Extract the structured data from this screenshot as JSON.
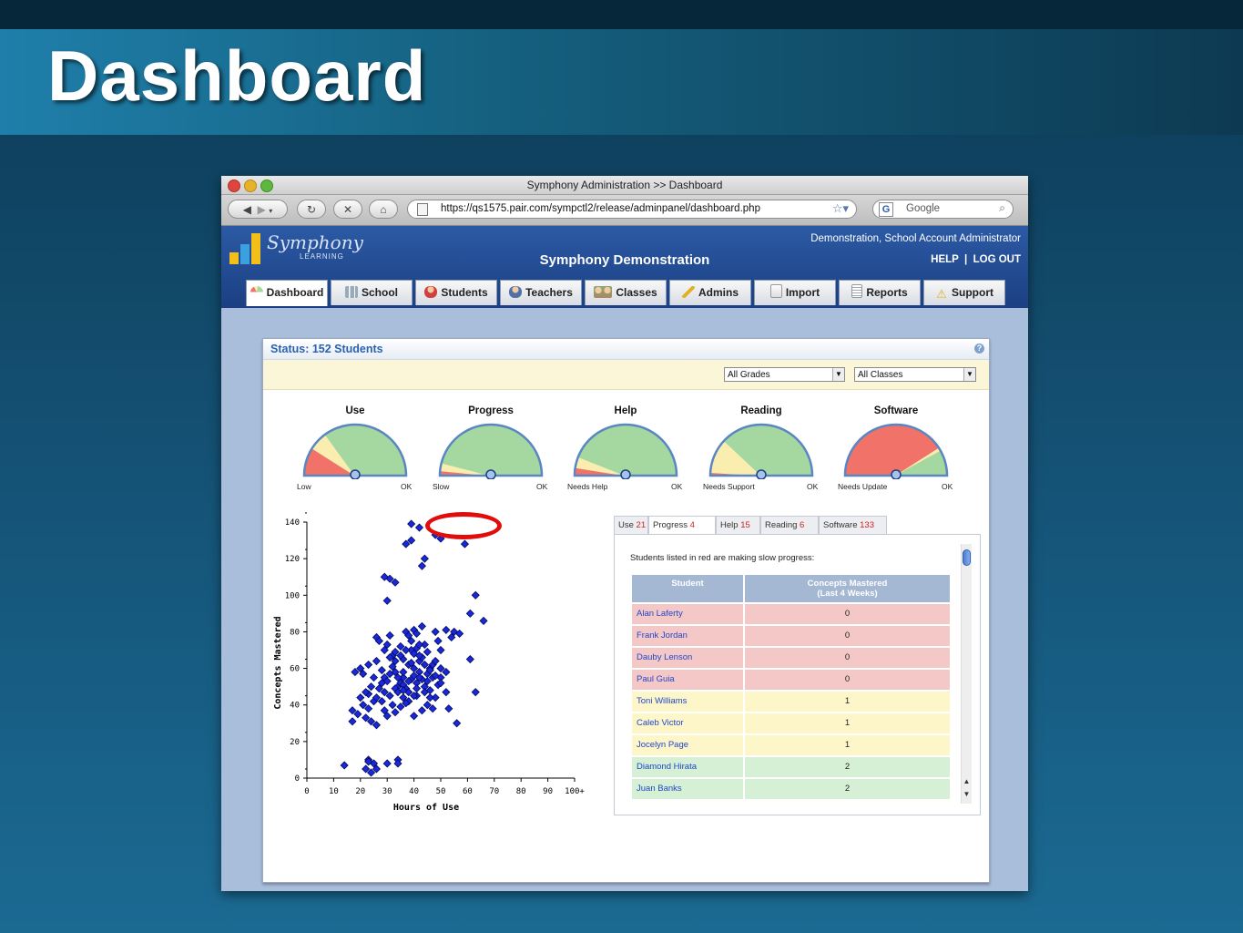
{
  "slide": {
    "title": "Dashboard"
  },
  "browser": {
    "window_title": "Symphony Administration >> Dashboard",
    "url": "https://qs1575.pair.com/sympctl2/release/adminpanel/dashboard.php",
    "search_placeholder": "Google",
    "search_engine_letter": "G"
  },
  "app": {
    "logo_text": "Symphony",
    "logo_sub": "LEARNING",
    "title": "Symphony Demonstration",
    "user": "Demonstration, School Account Administrator",
    "help": "HELP",
    "separator": "|",
    "logout": "LOG OUT",
    "tabs": [
      {
        "label": "Dashboard",
        "icon": "gauge-icon",
        "active": true
      },
      {
        "label": "School",
        "icon": "chart-icon",
        "active": false
      },
      {
        "label": "Students",
        "icon": "student-icon",
        "active": false
      },
      {
        "label": "Teachers",
        "icon": "teacher-icon",
        "active": false
      },
      {
        "label": "Classes",
        "icon": "classes-icon",
        "active": false
      },
      {
        "label": "Admins",
        "icon": "key-icon",
        "active": false
      },
      {
        "label": "Import",
        "icon": "import-icon",
        "active": false
      },
      {
        "label": "Reports",
        "icon": "report-icon",
        "active": false
      },
      {
        "label": "Support",
        "icon": "warning-icon",
        "active": false
      }
    ]
  },
  "status": {
    "title": "Status: 152 Students",
    "grade_filter": "All Grades",
    "class_filter": "All Classes",
    "gauges": [
      {
        "title": "Use",
        "low_label": "Low",
        "high_label": "OK",
        "red": 0.18,
        "yellow": 0.12,
        "green": 0.7
      },
      {
        "title": "Progress",
        "low_label": "Slow",
        "high_label": "OK",
        "red": 0.03,
        "yellow": 0.05,
        "green": 0.92
      },
      {
        "title": "Help",
        "low_label": "Needs Help",
        "high_label": "OK",
        "red": 0.05,
        "yellow": 0.07,
        "green": 0.88
      },
      {
        "title": "Reading",
        "low_label": "Needs Support",
        "high_label": "OK",
        "red": 0.02,
        "yellow": 0.22,
        "green": 0.76
      },
      {
        "title": "Software",
        "low_label": "Needs Update",
        "high_label": "OK",
        "red": 0.82,
        "yellow": 0.02,
        "green": 0.16
      }
    ]
  },
  "chart_data": {
    "type": "scatter",
    "xlabel": "Hours of Use",
    "ylabel": "Concepts Mastered",
    "xlim": [
      0,
      100
    ],
    "ylim": [
      0,
      140
    ],
    "x_ticks": [
      "0",
      "10",
      "20",
      "30",
      "40",
      "50",
      "60",
      "70",
      "80",
      "90",
      "100+"
    ],
    "y_ticks": [
      "0",
      "20",
      "40",
      "60",
      "80",
      "100",
      "120",
      "140"
    ],
    "points": [
      [
        14,
        7
      ],
      [
        22,
        5
      ],
      [
        23,
        10
      ],
      [
        25,
        8
      ],
      [
        24,
        3
      ],
      [
        26,
        5
      ],
      [
        30,
        8
      ],
      [
        34,
        10
      ],
      [
        34,
        8
      ],
      [
        23,
        9
      ],
      [
        17,
        37
      ],
      [
        17,
        31
      ],
      [
        19,
        35
      ],
      [
        21,
        40
      ],
      [
        22,
        33
      ],
      [
        23,
        38
      ],
      [
        24,
        31
      ],
      [
        25,
        42
      ],
      [
        26,
        44
      ],
      [
        23,
        46
      ],
      [
        18,
        58
      ],
      [
        20,
        60
      ],
      [
        21,
        57
      ],
      [
        23,
        62
      ],
      [
        25,
        55
      ],
      [
        26,
        64
      ],
      [
        28,
        59
      ],
      [
        29,
        55
      ],
      [
        30,
        53
      ],
      [
        31,
        57
      ],
      [
        32,
        61
      ],
      [
        33,
        58
      ],
      [
        34,
        50
      ],
      [
        35,
        52
      ],
      [
        36,
        55
      ],
      [
        37,
        49
      ],
      [
        38,
        47
      ],
      [
        39,
        54
      ],
      [
        40,
        56
      ],
      [
        41,
        52
      ],
      [
        42,
        58
      ],
      [
        43,
        54
      ],
      [
        44,
        50
      ],
      [
        45,
        53
      ],
      [
        46,
        48
      ],
      [
        47,
        55
      ],
      [
        48,
        44
      ],
      [
        49,
        51
      ],
      [
        50,
        60
      ],
      [
        52,
        47
      ],
      [
        26,
        77
      ],
      [
        27,
        75
      ],
      [
        29,
        70
      ],
      [
        30,
        73
      ],
      [
        32,
        67
      ],
      [
        31,
        78
      ],
      [
        33,
        69
      ],
      [
        35,
        72
      ],
      [
        36,
        65
      ],
      [
        37,
        80
      ],
      [
        38,
        78
      ],
      [
        39,
        70
      ],
      [
        40,
        68
      ],
      [
        41,
        71
      ],
      [
        42,
        64
      ],
      [
        43,
        66
      ],
      [
        44,
        73
      ],
      [
        45,
        69
      ],
      [
        46,
        60
      ],
      [
        47,
        62
      ],
      [
        48,
        80
      ],
      [
        49,
        75
      ],
      [
        50,
        70
      ],
      [
        52,
        81
      ],
      [
        54,
        77
      ],
      [
        55,
        80
      ],
      [
        57,
        79
      ],
      [
        61,
        65
      ],
      [
        63,
        47
      ],
      [
        66,
        86
      ],
      [
        29,
        110
      ],
      [
        31,
        109
      ],
      [
        30,
        97
      ],
      [
        33,
        107
      ],
      [
        37,
        128
      ],
      [
        39,
        130
      ],
      [
        39,
        139
      ],
      [
        42,
        137
      ],
      [
        43,
        116
      ],
      [
        44,
        120
      ],
      [
        48,
        133
      ],
      [
        50,
        131
      ],
      [
        59,
        128
      ],
      [
        63,
        100
      ],
      [
        61,
        90
      ],
      [
        26,
        29
      ],
      [
        33,
        36
      ],
      [
        35,
        39
      ],
      [
        38,
        42
      ],
      [
        40,
        34
      ],
      [
        41,
        45
      ],
      [
        43,
        37
      ],
      [
        45,
        40
      ],
      [
        47,
        38
      ],
      [
        28,
        42
      ],
      [
        29,
        47
      ],
      [
        31,
        45
      ],
      [
        33,
        49
      ],
      [
        36,
        44
      ],
      [
        37,
        41
      ],
      [
        38,
        62
      ],
      [
        40,
        60
      ],
      [
        42,
        67
      ],
      [
        45,
        57
      ],
      [
        46,
        59
      ],
      [
        48,
        64
      ],
      [
        50,
        55
      ],
      [
        53,
        38
      ],
      [
        56,
        30
      ],
      [
        34,
        55
      ],
      [
        36,
        58
      ],
      [
        39,
        63
      ],
      [
        41,
        49
      ],
      [
        44,
        47
      ],
      [
        40,
        81
      ],
      [
        41,
        79
      ],
      [
        43,
        83
      ],
      [
        42,
        73
      ],
      [
        39,
        75
      ],
      [
        37,
        70
      ],
      [
        35,
        67
      ],
      [
        33,
        64
      ],
      [
        31,
        66
      ],
      [
        28,
        52
      ],
      [
        27,
        49
      ],
      [
        24,
        50
      ],
      [
        22,
        47
      ],
      [
        20,
        44
      ],
      [
        29,
        37
      ],
      [
        32,
        40
      ],
      [
        30,
        34
      ],
      [
        34,
        47
      ],
      [
        36,
        51
      ],
      [
        46,
        44
      ],
      [
        48,
        56
      ],
      [
        50,
        52
      ],
      [
        52,
        58
      ],
      [
        44,
        62
      ],
      [
        42,
        55
      ],
      [
        40,
        45
      ],
      [
        38,
        53
      ],
      [
        36,
        48
      ]
    ]
  },
  "progress_table": {
    "tabs": [
      {
        "label": "Use",
        "count": "21",
        "active": false
      },
      {
        "label": "Progress",
        "count": "4",
        "active": true
      },
      {
        "label": "Help",
        "count": "15",
        "active": false
      },
      {
        "label": "Reading",
        "count": "6",
        "active": false
      },
      {
        "label": "Software",
        "count": "133",
        "active": false
      }
    ],
    "note": "Students listed in red are making slow progress:",
    "col_student": "Student",
    "col_concepts_1": "Concepts Mastered",
    "col_concepts_2": "(Last 4 Weeks)",
    "rows": [
      {
        "student": "Alan Laferty",
        "concepts": "0",
        "status": "red"
      },
      {
        "student": "Frank Jordan",
        "concepts": "0",
        "status": "red"
      },
      {
        "student": "Dauby Lenson",
        "concepts": "0",
        "status": "red"
      },
      {
        "student": "Paul Guia",
        "concepts": "0",
        "status": "red"
      },
      {
        "student": "Toni Williams",
        "concepts": "1",
        "status": "yellow"
      },
      {
        "student": "Caleb Victor",
        "concepts": "1",
        "status": "yellow"
      },
      {
        "student": "Jocelyn Page",
        "concepts": "1",
        "status": "yellow"
      },
      {
        "student": "Diamond Hirata",
        "concepts": "2",
        "status": "green"
      },
      {
        "student": "Juan Banks",
        "concepts": "2",
        "status": "green"
      }
    ]
  },
  "colors": {
    "red": "#f07268",
    "yellow": "#f9eeb0",
    "green": "#a5d8a0",
    "row_red": "#f5c8c8",
    "row_yellow": "#fdf6c8",
    "row_green": "#d5f0d5",
    "link": "#2146c8"
  }
}
